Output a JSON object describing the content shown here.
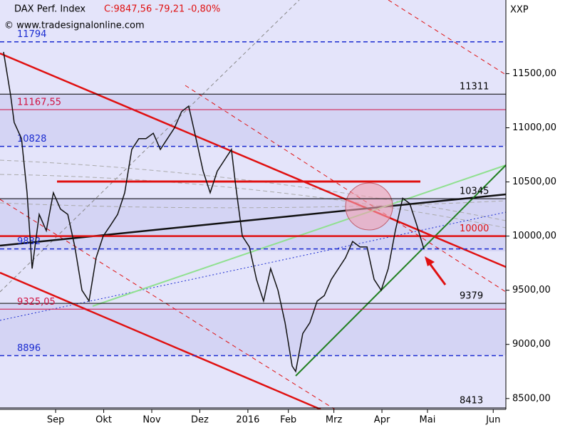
{
  "chart_data": {
    "type": "line",
    "title": "DAX Perf. Index",
    "subtitle": "C:9847,56 -79,21 -0,80%",
    "source": "© www.tradesignalonline.com",
    "y_label": "XXP",
    "xlim": [
      0,
      200
    ],
    "ylim": [
      8400,
      12180
    ],
    "xticks": [
      {
        "value": 22,
        "label": "Sep"
      },
      {
        "value": 41,
        "label": "Okt"
      },
      {
        "value": 60,
        "label": "Nov"
      },
      {
        "value": 79,
        "label": "Dez"
      },
      {
        "value": 98,
        "label": "2016"
      },
      {
        "value": 114,
        "label": "Feb"
      },
      {
        "value": 132,
        "label": "Mrz"
      },
      {
        "value": 151,
        "label": "Apr"
      },
      {
        "value": 169,
        "label": "Mai"
      },
      {
        "value": 195,
        "label": "Jun"
      }
    ],
    "yticks": [
      {
        "value": 8500,
        "label": "8500,00"
      },
      {
        "value": 9000,
        "label": "9000,00"
      },
      {
        "value": 9500,
        "label": "9500,00"
      },
      {
        "value": 10000,
        "label": "10000,00"
      },
      {
        "value": 10500,
        "label": "10500,00"
      },
      {
        "value": 11000,
        "label": "11000,00"
      },
      {
        "value": 11500,
        "label": "11500,00"
      }
    ],
    "levels": [
      {
        "value": 11794,
        "label": "11794",
        "color": "#1a2bd0",
        "style": "dashed",
        "side": "left"
      },
      {
        "value": 11311,
        "label": "11311",
        "color": "#000000",
        "style": "solid",
        "side": "right"
      },
      {
        "value": 11167.55,
        "label": "11167,55",
        "color": "#d01040",
        "style": "thin",
        "side": "left"
      },
      {
        "value": 10828,
        "label": "10828",
        "color": "#1a2bd0",
        "style": "dashed",
        "side": "left"
      },
      {
        "value": 10345,
        "label": "10345",
        "color": "#000000",
        "style": "solid",
        "side": "right"
      },
      {
        "value": 10000,
        "label": "10000",
        "color": "#e01010",
        "style": "thick",
        "side": "right"
      },
      {
        "value": 9882,
        "label": "9882",
        "color": "#1a2bd0",
        "style": "dashed",
        "side": "left"
      },
      {
        "value": 9379,
        "label": "9379",
        "color": "#000000",
        "style": "solid",
        "side": "right"
      },
      {
        "value": 9325.05,
        "label": "9325,05",
        "color": "#d01040",
        "style": "thin",
        "side": "left"
      },
      {
        "value": 8896,
        "label": "8896",
        "color": "#1a2bd0",
        "style": "dashed",
        "side": "left"
      },
      {
        "value": 8413,
        "label": "8413",
        "color": "#000000",
        "style": "solid",
        "side": "right"
      }
    ],
    "x": [
      1.4,
      4.2,
      5.6,
      8.5,
      10.7,
      12.7,
      15.5,
      18.3,
      21.1,
      23.9,
      26.8,
      29.6,
      32.4,
      35.2,
      38,
      40.8,
      43.7,
      46.5,
      49.3,
      52.1,
      54.9,
      57.7,
      60.6,
      63.4,
      66.2,
      69,
      71.8,
      74.6,
      77.5,
      80.3,
      83.1,
      85.9,
      88.7,
      91.5,
      93,
      95.8,
      98.6,
      101.4,
      104.2,
      107,
      109.9,
      112.7,
      115.5,
      116.9,
      119.7,
      122.5,
      125.4,
      128.2,
      131,
      133.8,
      136.6,
      139.4,
      142.3,
      145.1,
      147.9,
      150.7,
      153.5,
      156.3,
      159.2,
      162,
      164.8,
      167.6
    ],
    "series": [
      {
        "name": "DAX Perf. Index",
        "color": "#111111",
        "values": [
          11700,
          11300,
          11050,
          10900,
          10400,
          9700,
          10200,
          10050,
          10400,
          10250,
          10200,
          9900,
          9500,
          9400,
          9800,
          10000,
          10100,
          10200,
          10400,
          10800,
          10900,
          10900,
          10950,
          10800,
          10900,
          11000,
          11150,
          11200,
          10900,
          10600,
          10400,
          10600,
          10700,
          10800,
          10500,
          10000,
          9900,
          9600,
          9400,
          9700,
          9500,
          9200,
          8800,
          8750,
          9100,
          9200,
          9400,
          9450,
          9600,
          9700,
          9800,
          9950,
          9900,
          9900,
          9600,
          9500,
          9700,
          10050,
          10350,
          10300,
          10100,
          9880
        ]
      }
    ]
  }
}
